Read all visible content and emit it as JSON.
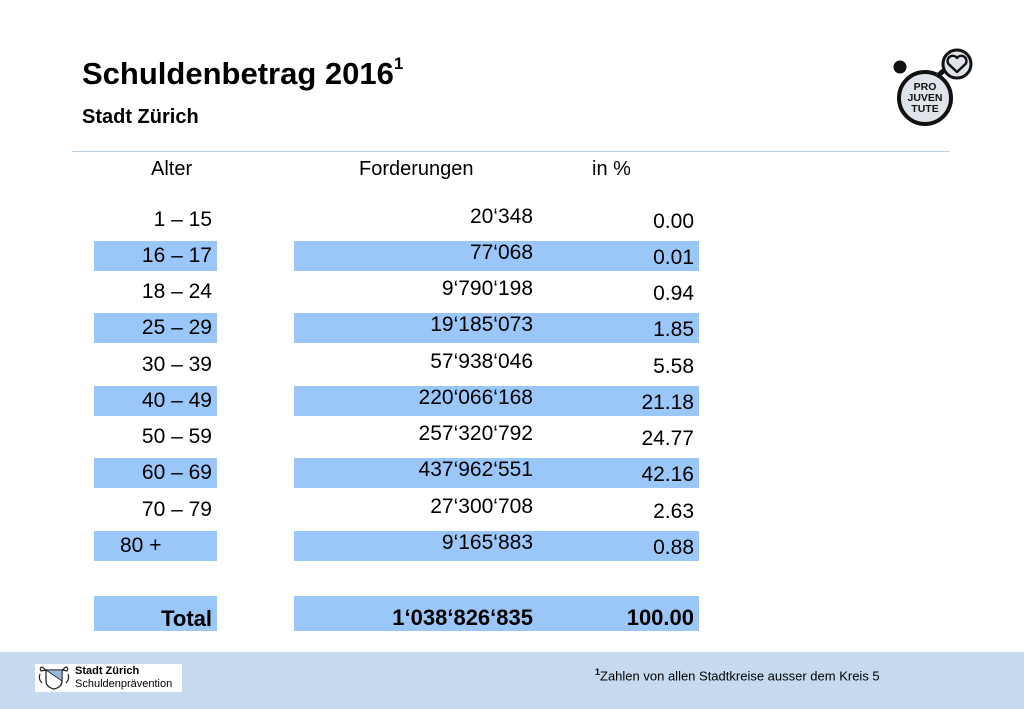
{
  "header": {
    "title": "Schuldenbetrag 2016",
    "title_sup": "1",
    "subtitle": "Stadt Zürich"
  },
  "logo": {
    "lines": [
      "PRO",
      "JUVEN",
      "TUTE"
    ],
    "icon": "pro-juventute-logo"
  },
  "table": {
    "headers": {
      "age": "Alter",
      "amount": "Forderungen",
      "pct": "in %"
    },
    "rows": [
      {
        "age": "1 – 15",
        "amount": "20‘348",
        "pct": "0.00"
      },
      {
        "age": "16 – 17",
        "amount": "77‘068",
        "pct": "0.01"
      },
      {
        "age": "18 – 24",
        "amount": "9‘790‘198",
        "pct": "0.94"
      },
      {
        "age": "25 – 29",
        "amount": "19‘185‘073",
        "pct": "1.85"
      },
      {
        "age": "30 – 39",
        "amount": "57‘938‘046",
        "pct": "5.58"
      },
      {
        "age": "40 – 49",
        "amount": "220‘066‘168",
        "pct": "21.18"
      },
      {
        "age": "50 – 59",
        "amount": "257‘320‘792",
        "pct": "24.77"
      },
      {
        "age": "60 – 69",
        "amount": "437‘962‘551",
        "pct": "42.16"
      },
      {
        "age": "70 – 79",
        "amount": "27‘300‘708",
        "pct": "2.63"
      },
      {
        "age": "80 +",
        "amount": "9‘165‘883",
        "pct": "0.88"
      }
    ],
    "total": {
      "age": "Total",
      "amount": "1‘038‘826‘835",
      "pct": "100.00"
    }
  },
  "footer": {
    "logo_line1": "Stadt Zürich",
    "logo_line2": "Schuldenprävention",
    "footnote_sup": "1",
    "footnote": "Zahlen von allen Stadtkreise ausser dem Kreis 5"
  },
  "colors": {
    "row_shade": "#9ac6f8",
    "footer_bg": "#c6daef",
    "divider": "#bcd4ea"
  }
}
